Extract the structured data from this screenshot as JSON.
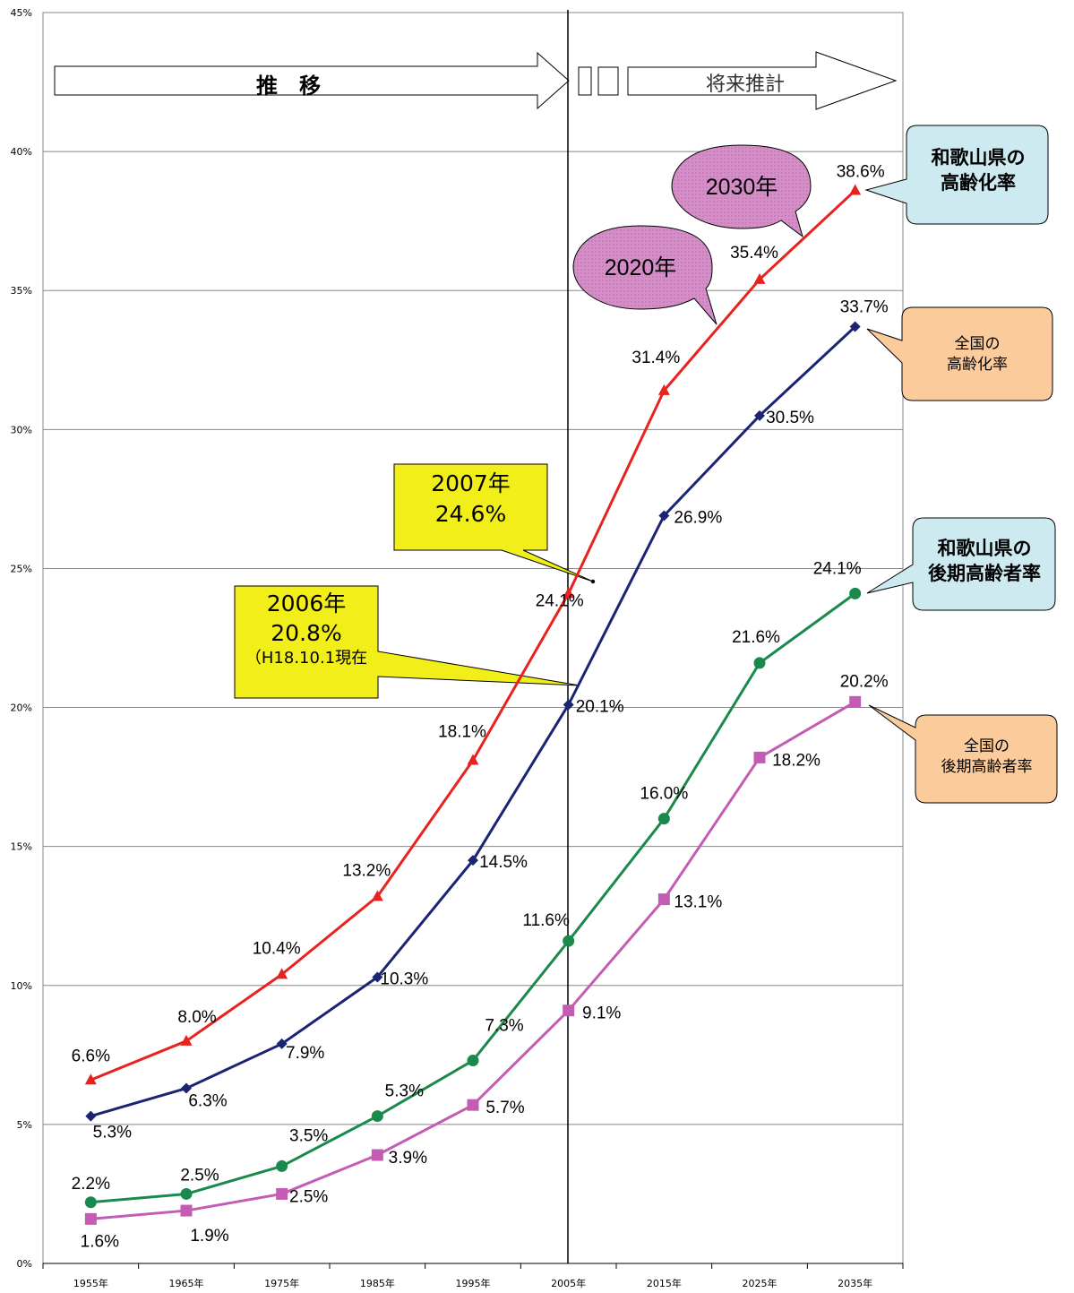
{
  "chart_data": {
    "type": "line",
    "categories": [
      "1955年",
      "1965年",
      "1975年",
      "1985年",
      "1995年",
      "2005年",
      "2015年",
      "2025年",
      "2035年"
    ],
    "ylim": [
      0,
      45
    ],
    "yticks": [
      "0%",
      "5%",
      "10%",
      "15%",
      "20%",
      "25%",
      "30%",
      "35%",
      "40%",
      "45%"
    ],
    "ytick_values": [
      0,
      5,
      10,
      15,
      20,
      25,
      30,
      35,
      40,
      45
    ],
    "grid": true,
    "series": [
      {
        "name": "和歌山県の高齢化率",
        "color": "#e8221f",
        "marker": "triangle",
        "values": [
          6.6,
          8.0,
          10.4,
          13.2,
          18.1,
          24.1,
          31.4,
          35.4,
          38.6
        ],
        "labels": [
          "6.6%",
          "8.0%",
          "10.4%",
          "13.2%",
          "18.1%",
          "24.1%",
          "31.4%",
          "35.4%",
          "38.6%"
        ]
      },
      {
        "name": "全国の高齢化率",
        "color": "#1b2472",
        "marker": "diamond",
        "values": [
          5.3,
          6.3,
          7.9,
          10.3,
          14.5,
          20.1,
          26.9,
          30.5,
          33.7
        ],
        "labels": [
          "5.3%",
          "6.3%",
          "7.9%",
          "10.3%",
          "14.5%",
          "20.1%",
          "26.9%",
          "30.5%",
          "33.7%"
        ]
      },
      {
        "name": "和歌山県の後期高齢者率",
        "color": "#1a8a4c",
        "marker": "circle",
        "values": [
          2.2,
          2.5,
          3.5,
          5.3,
          7.3,
          11.6,
          16.0,
          21.6,
          24.1
        ],
        "labels": [
          "2.2%",
          "2.5%",
          "3.5%",
          "5.3%",
          "7.3%",
          "11.6%",
          "16.0%",
          "21.6%",
          "24.1%"
        ]
      },
      {
        "name": "全国の後期高齢者率",
        "color": "#c45cb4",
        "marker": "square",
        "values": [
          1.6,
          1.9,
          2.5,
          3.9,
          5.7,
          9.1,
          13.1,
          18.2,
          20.2
        ],
        "labels": [
          "1.6%",
          "1.9%",
          "2.5%",
          "3.9%",
          "5.7%",
          "9.1%",
          "13.1%",
          "18.2%",
          "20.2%"
        ]
      }
    ]
  },
  "arrows": {
    "past": "推　移",
    "future": "将来推計"
  },
  "callouts": {
    "wakayama_aging": {
      "line1": "和歌山県の",
      "line2": "高齢化率",
      "color": "#cdeaf0"
    },
    "national_aging": {
      "line1": "全国の",
      "line2": "高齢化率",
      "color": "#fbcb9c"
    },
    "wakayama_late": {
      "line1": "和歌山県の",
      "line2": "後期高齢者率",
      "color": "#cdeaf0"
    },
    "national_late": {
      "line1": "全国の",
      "line2": "後期高齢者率",
      "color": "#fbcb9c"
    },
    "year2007": {
      "line1": "2007年",
      "line2": "24.6%",
      "color": "#f2ee1a"
    },
    "year2006": {
      "line1": "2006年",
      "line2": "20.8%",
      "line3": "（H18.10.1現在",
      "color": "#f2ee1a"
    },
    "bubble2020": {
      "text": "2020年",
      "color": "#d58ec8"
    },
    "bubble2030": {
      "text": "2030年",
      "color": "#d58ec8"
    }
  }
}
